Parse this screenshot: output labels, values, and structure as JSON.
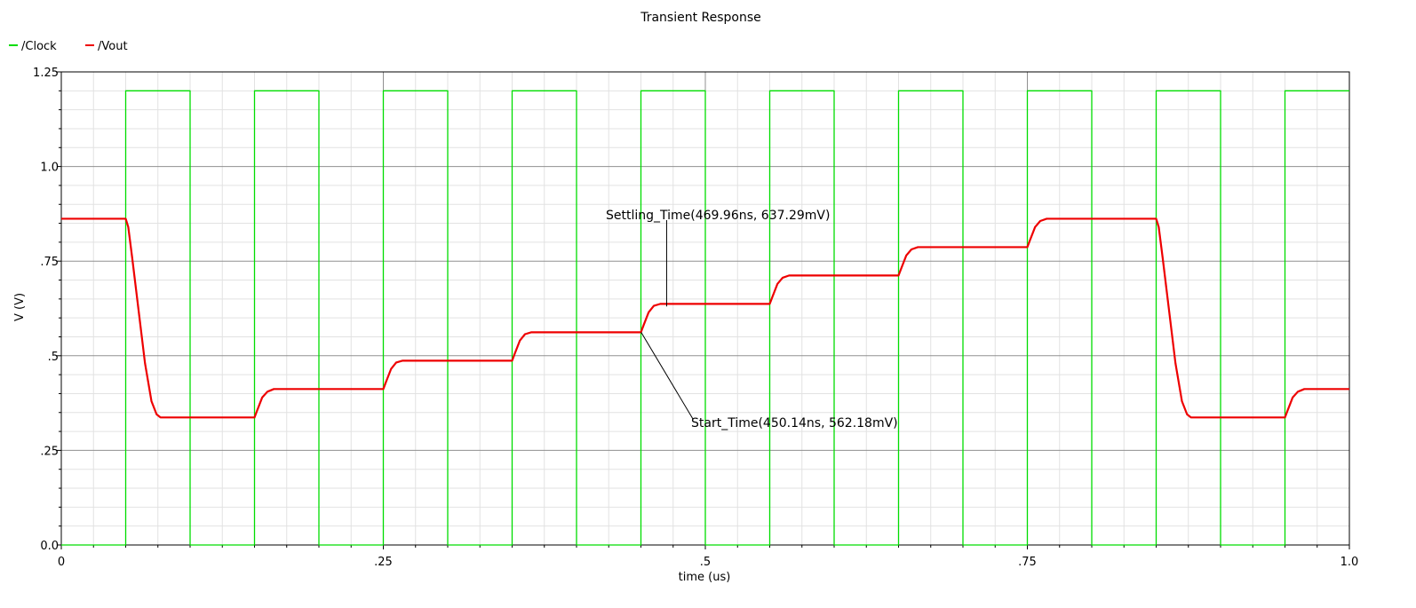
{
  "chart_data": {
    "type": "line",
    "title": "Transient Response",
    "xlabel": "time (us)",
    "ylabel": "V (V)",
    "xlim": [
      0,
      1.0
    ],
    "ylim": [
      0,
      1.25
    ],
    "x_ticks": [
      {
        "value": 0,
        "label": "0"
      },
      {
        "value": 0.25,
        "label": ".25"
      },
      {
        "value": 0.5,
        "label": ".5"
      },
      {
        "value": 0.75,
        "label": ".75"
      },
      {
        "value": 1.0,
        "label": "1.0"
      }
    ],
    "y_ticks": [
      {
        "value": 0,
        "label": "0.0"
      },
      {
        "value": 0.25,
        "label": ".25"
      },
      {
        "value": 0.5,
        "label": ".5"
      },
      {
        "value": 0.75,
        "label": ".75"
      },
      {
        "value": 1.0,
        "label": "1.0"
      },
      {
        "value": 1.25,
        "label": "1.25"
      }
    ],
    "grid": true,
    "legend_position": "top-left",
    "series": [
      {
        "name": "/Clock",
        "color": "#00dd00",
        "x": [
          0,
          0.05,
          0.05,
          0.1,
          0.1,
          0.15,
          0.15,
          0.2,
          0.2,
          0.25,
          0.25,
          0.3,
          0.3,
          0.35,
          0.35,
          0.4,
          0.4,
          0.45,
          0.45,
          0.5,
          0.5,
          0.55,
          0.55,
          0.6,
          0.6,
          0.65,
          0.65,
          0.7,
          0.7,
          0.75,
          0.75,
          0.8,
          0.8,
          0.85,
          0.85,
          0.9,
          0.9,
          0.95,
          0.95,
          1.0
        ],
        "y": [
          0,
          0,
          1.2,
          1.2,
          0,
          0,
          1.2,
          1.2,
          0,
          0,
          1.2,
          1.2,
          0,
          0,
          1.2,
          1.2,
          0,
          0,
          1.2,
          1.2,
          0,
          0,
          1.2,
          1.2,
          0,
          0,
          1.2,
          1.2,
          0,
          0,
          1.2,
          1.2,
          0,
          0,
          1.2,
          1.2,
          0,
          0,
          1.2,
          1.2
        ]
      },
      {
        "name": "/Vout",
        "color": "#ee0000",
        "x": [
          0,
          0.05,
          0.052,
          0.055,
          0.06,
          0.065,
          0.07,
          0.074,
          0.077,
          0.15,
          0.152,
          0.156,
          0.16,
          0.165,
          0.25,
          0.252,
          0.256,
          0.26,
          0.265,
          0.35,
          0.352,
          0.356,
          0.36,
          0.365,
          0.45,
          0.452,
          0.456,
          0.46,
          0.465,
          0.55,
          0.552,
          0.556,
          0.56,
          0.565,
          0.65,
          0.652,
          0.656,
          0.66,
          0.665,
          0.75,
          0.752,
          0.756,
          0.76,
          0.765,
          0.85,
          0.852,
          0.855,
          0.86,
          0.865,
          0.87,
          0.874,
          0.877,
          0.95,
          0.952,
          0.956,
          0.96,
          0.965,
          1.0
        ],
        "y": [
          0.862,
          0.862,
          0.84,
          0.76,
          0.62,
          0.48,
          0.38,
          0.345,
          0.337,
          0.337,
          0.355,
          0.39,
          0.405,
          0.412,
          0.412,
          0.43,
          0.465,
          0.482,
          0.487,
          0.487,
          0.505,
          0.54,
          0.557,
          0.562,
          0.562,
          0.58,
          0.615,
          0.632,
          0.637,
          0.637,
          0.655,
          0.69,
          0.706,
          0.712,
          0.712,
          0.73,
          0.765,
          0.781,
          0.787,
          0.787,
          0.805,
          0.84,
          0.856,
          0.862,
          0.862,
          0.84,
          0.76,
          0.62,
          0.48,
          0.38,
          0.345,
          0.337,
          0.337,
          0.355,
          0.39,
          0.405,
          0.412,
          0.412
        ]
      }
    ],
    "annotations": [
      {
        "label": "Settling_Time(469.96ns, 637.29mV)",
        "x": 0.46996,
        "y": 0.63729
      },
      {
        "label": "Start_Time(450.14ns, 562.18mV)",
        "x": 0.45014,
        "y": 0.56218
      }
    ]
  }
}
